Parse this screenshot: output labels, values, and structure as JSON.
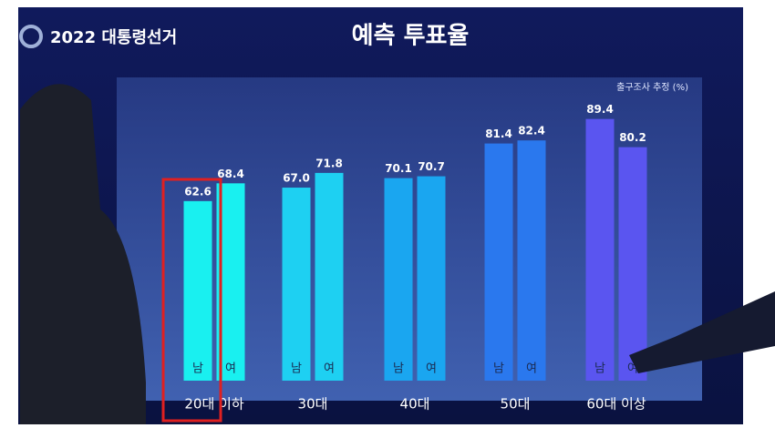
{
  "chart_data": {
    "type": "bar",
    "header": "2022 대통령선거",
    "title": "예측 투표율",
    "note": "출구조사 추정 (%)",
    "categories": [
      "20대 이하",
      "30대",
      "40대",
      "50대",
      "60대 이상"
    ],
    "colors": [
      "#19f0f0",
      "#1ed0f2",
      "#1aa6f0",
      "#2a78ee",
      "#5a55f0"
    ],
    "series": [
      {
        "name": "남",
        "values": [
          62.6,
          67.0,
          70.1,
          81.4,
          89.4
        ],
        "value_labels": [
          "62.6",
          "67.0",
          "70.1",
          "81.4",
          "89.4"
        ]
      },
      {
        "name": "여",
        "values": [
          68.4,
          71.8,
          70.7,
          82.4,
          80.2
        ],
        "value_labels": [
          "68.4",
          "71.8",
          "70.7",
          "82.4",
          "80.2"
        ]
      }
    ],
    "ylim": [
      4,
      100
    ]
  }
}
